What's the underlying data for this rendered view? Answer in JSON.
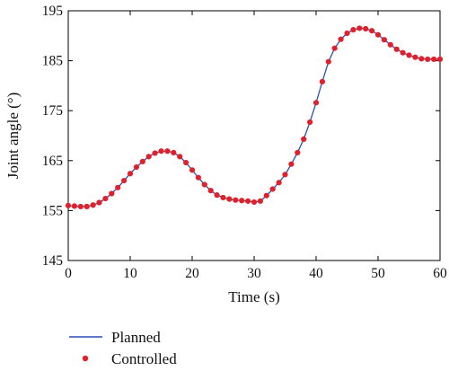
{
  "chart_data": {
    "type": "line",
    "title": "",
    "xlabel": "Time (s)",
    "ylabel": "Joint angle (°)",
    "xlim": [
      0,
      60
    ],
    "ylim": [
      145,
      195
    ],
    "xticks": [
      0,
      10,
      20,
      30,
      40,
      50,
      60
    ],
    "yticks": [
      145,
      155,
      165,
      175,
      185,
      195
    ],
    "grid": false,
    "legend_position": "bottom-left, below plot",
    "series": [
      {
        "name": "Planned",
        "style": "line",
        "color": "#2b4fb8",
        "x": [
          0,
          1,
          2,
          3,
          4,
          5,
          6,
          7,
          8,
          9,
          10,
          11,
          12,
          13,
          14,
          15,
          16,
          17,
          18,
          19,
          20,
          21,
          22,
          23,
          24,
          25,
          26,
          27,
          28,
          29,
          30,
          31,
          32,
          33,
          34,
          35,
          36,
          37,
          38,
          39,
          40,
          41,
          42,
          43,
          44,
          45,
          46,
          47,
          48,
          49,
          50,
          51,
          52,
          53,
          54,
          55,
          56,
          57,
          58,
          59,
          60
        ],
        "y": [
          156.0,
          155.9,
          155.8,
          155.8,
          156.1,
          156.6,
          157.4,
          158.4,
          159.6,
          161.0,
          162.4,
          163.7,
          164.8,
          165.8,
          166.5,
          166.9,
          166.9,
          166.6,
          165.8,
          164.6,
          163.1,
          161.6,
          160.2,
          159.0,
          158.1,
          157.6,
          157.3,
          157.1,
          157.0,
          156.9,
          156.7,
          156.9,
          158.0,
          159.3,
          160.6,
          162.2,
          164.3,
          166.6,
          169.3,
          172.7,
          176.6,
          180.8,
          184.8,
          187.5,
          189.3,
          190.5,
          191.2,
          191.5,
          191.4,
          191.0,
          190.2,
          189.2,
          188.2,
          187.3,
          186.6,
          186.1,
          185.7,
          185.4,
          185.3,
          185.3,
          185.3
        ]
      },
      {
        "name": "Controlled",
        "style": "markers",
        "color": "#e0202b",
        "x": [
          0,
          1,
          2,
          3,
          4,
          5,
          6,
          7,
          8,
          9,
          10,
          11,
          12,
          13,
          14,
          15,
          16,
          17,
          18,
          19,
          20,
          21,
          22,
          23,
          24,
          25,
          26,
          27,
          28,
          29,
          30,
          31,
          32,
          33,
          34,
          35,
          36,
          37,
          38,
          39,
          40,
          41,
          42,
          43,
          44,
          45,
          46,
          47,
          48,
          49,
          50,
          51,
          52,
          53,
          54,
          55,
          56,
          57,
          58,
          59,
          60
        ],
        "y": [
          156.0,
          155.9,
          155.8,
          155.8,
          156.1,
          156.6,
          157.4,
          158.4,
          159.6,
          161.0,
          162.4,
          163.7,
          164.8,
          165.8,
          166.5,
          166.9,
          166.9,
          166.6,
          165.8,
          164.6,
          163.1,
          161.6,
          160.2,
          159.0,
          158.1,
          157.6,
          157.3,
          157.1,
          157.0,
          156.9,
          156.7,
          156.9,
          158.0,
          159.3,
          160.6,
          162.2,
          164.3,
          166.6,
          169.3,
          172.7,
          176.6,
          180.8,
          184.8,
          187.5,
          189.3,
          190.5,
          191.2,
          191.5,
          191.4,
          191.0,
          190.2,
          189.2,
          188.2,
          187.3,
          186.6,
          186.1,
          185.7,
          185.4,
          185.3,
          185.3,
          185.3
        ]
      }
    ]
  }
}
